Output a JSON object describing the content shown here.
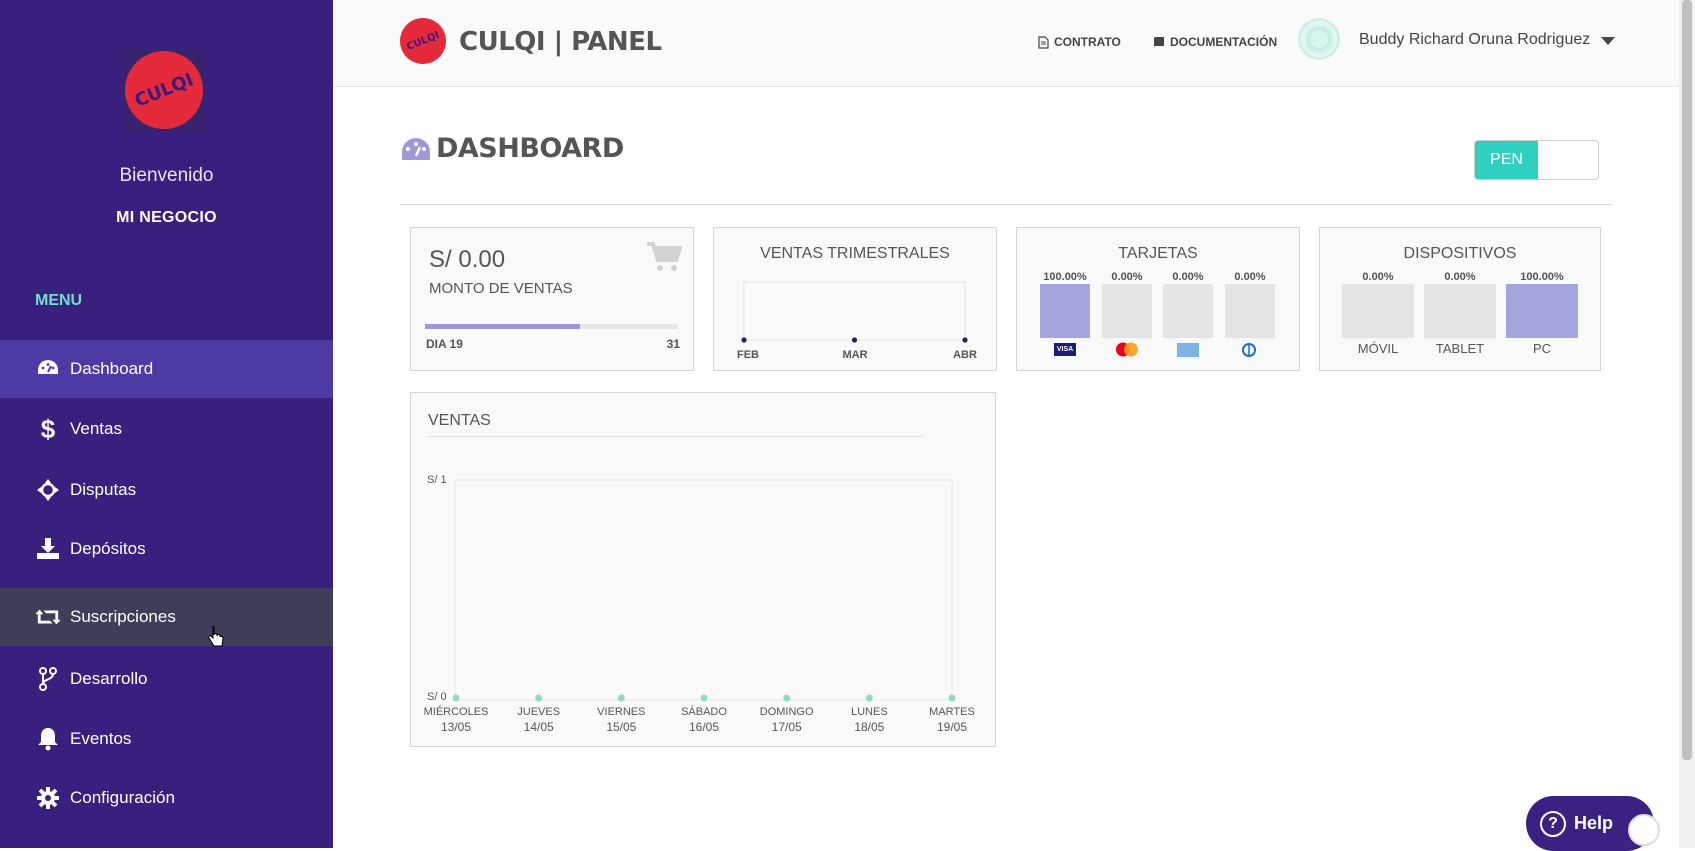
{
  "sidebar": {
    "logo_text": "CULQI",
    "welcome": "Bienvenido",
    "business": "MI NEGOCIO",
    "menu_title": "MENU",
    "items": [
      {
        "label": "Dashboard",
        "icon": "dashboard-icon"
      },
      {
        "label": "Ventas",
        "icon": "dollar-icon"
      },
      {
        "label": "Disputas",
        "icon": "disputes-icon"
      },
      {
        "label": "Depósitos",
        "icon": "download-icon"
      },
      {
        "label": "Suscripciones",
        "icon": "retweet-icon"
      },
      {
        "label": "Desarrollo",
        "icon": "branch-icon"
      },
      {
        "label": "Eventos",
        "icon": "bell-icon"
      },
      {
        "label": "Configuración",
        "icon": "gear-icon"
      }
    ]
  },
  "header": {
    "logo_text": "CULQI",
    "title": "CULQI | PANEL",
    "contract": "CONTRATO",
    "docs": "DOCUMENTACIÓN",
    "user": "Buddy Richard Oruna Rodriguez"
  },
  "page": {
    "title": "DASHBOARD",
    "currency": "PEN"
  },
  "sales_card": {
    "amount": "S/ 0.00",
    "label": "MONTO DE VENTAS",
    "day_label": "DIA 19",
    "day_total": "31",
    "progress": 0.613
  },
  "quarterly": {
    "title": "VENTAS TRIMESTRALES",
    "months": [
      "FEB",
      "MAR",
      "ABR"
    ]
  },
  "cards": {
    "title": "TARJETAS",
    "items": [
      {
        "pct": "100.00%",
        "value": 1.0,
        "brand": "VISA"
      },
      {
        "pct": "0.00%",
        "value": 0,
        "brand": "mastercard"
      },
      {
        "pct": "0.00%",
        "value": 0,
        "brand": "amex"
      },
      {
        "pct": "0.00%",
        "value": 0,
        "brand": "diners"
      }
    ]
  },
  "devices": {
    "title": "DISPOSITIVOS",
    "items": [
      {
        "pct": "0.00%",
        "value": 0,
        "label": "MÓVIL"
      },
      {
        "pct": "0.00%",
        "value": 0,
        "label": "TABLET"
      },
      {
        "pct": "100.00%",
        "value": 1.0,
        "label": "PC"
      }
    ]
  },
  "sales_chart": {
    "title": "VENTAS"
  },
  "chart_data": [
    {
      "type": "line",
      "title": "VENTAS TRIMESTRALES",
      "categories": [
        "FEB",
        "MAR",
        "ABR"
      ],
      "series": [
        {
          "values": [
            0,
            0,
            0
          ]
        }
      ],
      "grid": false
    },
    {
      "type": "line",
      "title": "VENTAS",
      "categories": [
        "MIÉRCOLES 13/05",
        "JUEVES 14/05",
        "VIERNES 15/05",
        "SÁBADO 16/05",
        "DOMINGO 17/05",
        "LUNES 18/05",
        "MARTES 19/05"
      ],
      "day_names": [
        "MIÉRCOLES",
        "JUEVES",
        "VIERNES",
        "SÁBADO",
        "DOMINGO",
        "LUNES",
        "MARTES"
      ],
      "dates": [
        "13/05",
        "14/05",
        "15/05",
        "16/05",
        "17/05",
        "18/05",
        "19/05"
      ],
      "series": [
        {
          "values": [
            0,
            0,
            0,
            0,
            0,
            0,
            0
          ]
        }
      ],
      "y_ticks": [
        "S/ 1",
        "S/ 0"
      ],
      "ylim": [
        0,
        1
      ],
      "color": "#8fdcc0"
    }
  ],
  "help": {
    "label": "Help"
  },
  "colors": {
    "sidebar": "#39207e",
    "active": "#4d3aa4",
    "accent": "#2fd0c0",
    "bar": "#a4a4df",
    "menu_title": "#6fe0c8"
  }
}
